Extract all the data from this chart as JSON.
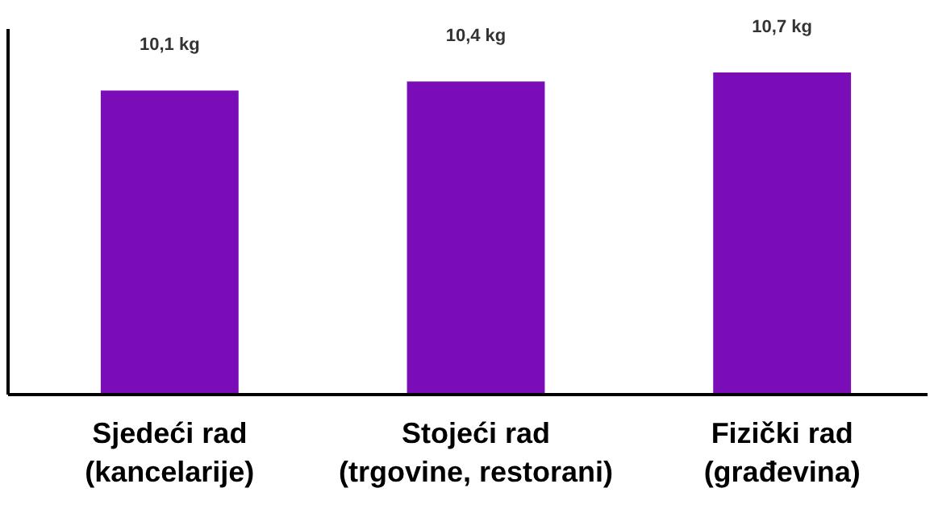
{
  "chart_data": {
    "type": "bar",
    "categories": [
      "Sjedeći rad\n(kancelarije)",
      "Stojeći rad\n(trgovine, restorani)",
      "Fizički rad\n(građevina)"
    ],
    "values": [
      10.1,
      10.4,
      10.7
    ],
    "value_labels": [
      "10,1 kg",
      "10,4 kg",
      "10,7 kg"
    ],
    "color": "#7a0db8"
  }
}
